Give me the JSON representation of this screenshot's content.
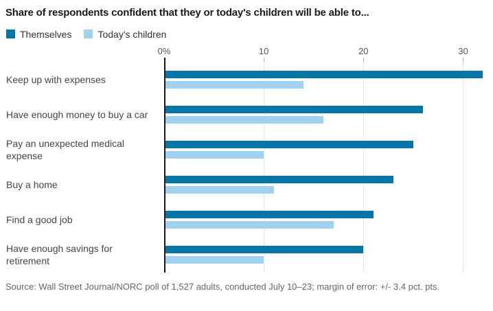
{
  "title": "Share of respondents confident that they or today's children will be able to...",
  "legend": [
    {
      "label": "Themselves"
    },
    {
      "label": "Today's children"
    }
  ],
  "colors": {
    "themselves": "#0476a8",
    "todays_children": "#9ed2f0"
  },
  "chart_data": {
    "type": "bar",
    "orientation": "horizontal",
    "title": "Share of respondents confident that they or today's children will be able to...",
    "categories": [
      "Keep up with expenses",
      "Have enough money to buy a car",
      "Pay an unexpected medical expense",
      "Buy a home",
      "Find a good job",
      "Have enough savings for retirement"
    ],
    "series": [
      {
        "name": "Themselves",
        "color": "#0476a8",
        "values": [
          32,
          26,
          25,
          23,
          21,
          20
        ]
      },
      {
        "name": "Today's children",
        "color": "#9ed2f0",
        "values": [
          14,
          16,
          10,
          11,
          17,
          10
        ]
      }
    ],
    "xlim": [
      0,
      33
    ],
    "x_ticks": [
      "0%",
      "10",
      "20",
      "30"
    ],
    "x_tick_values": [
      0,
      10,
      20,
      30
    ],
    "grid": true,
    "legend_position": "top-left",
    "unit": "percent"
  },
  "footer": "Source: Wall Street Journal/NORC poll of 1,527 adults, conducted July 10–23; margin of error: +/- 3.4 pct. pts."
}
